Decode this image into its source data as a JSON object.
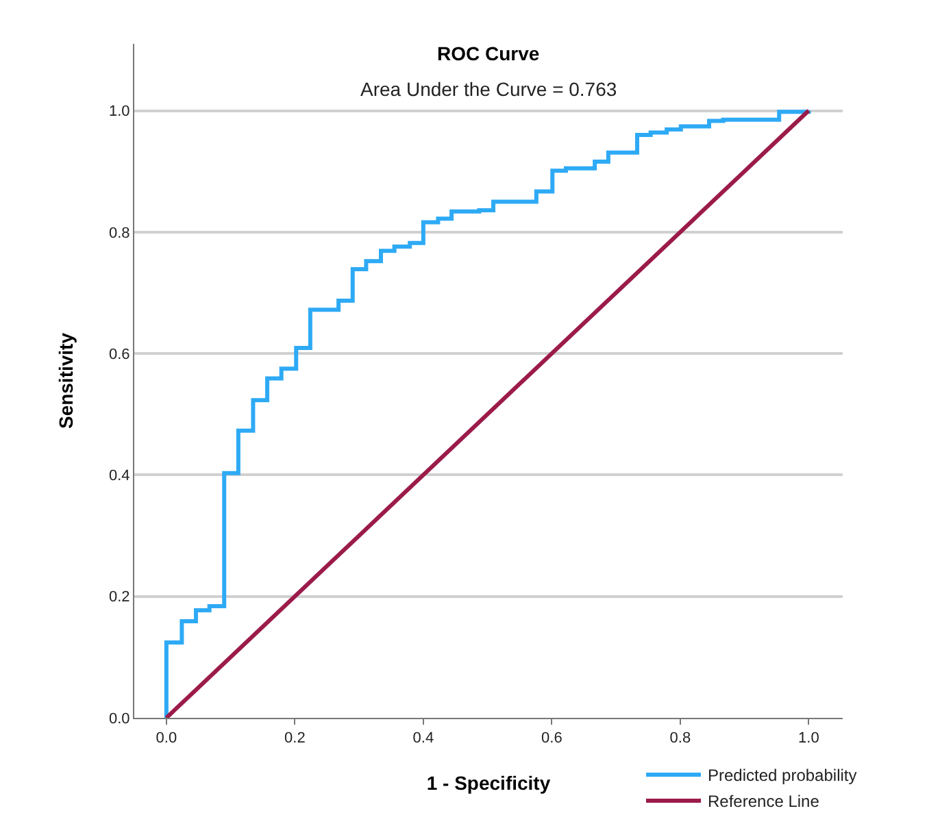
{
  "chart_data": {
    "type": "line",
    "title": "ROC Curve",
    "subtitle": "Area Under the Curve = 0.763",
    "xlabel": "1 - Specificity",
    "ylabel": "Sensitivity",
    "xlim": [
      -0.05,
      1.053
    ],
    "ylim": [
      0,
      1.11
    ],
    "xticks": [
      {
        "value": 0,
        "label": "0.0"
      },
      {
        "value": 0.2,
        "label": "0.2"
      },
      {
        "value": 0.4,
        "label": "0.4"
      },
      {
        "value": 0.6,
        "label": "0.6"
      },
      {
        "value": 0.8,
        "label": "0.8"
      },
      {
        "value": 1,
        "label": "1.0"
      }
    ],
    "yticks": [
      {
        "value": 0,
        "label": "0.0"
      },
      {
        "value": 0.2,
        "label": "0.2"
      },
      {
        "value": 0.4,
        "label": "0.4"
      },
      {
        "value": 0.6,
        "label": "0.6"
      },
      {
        "value": 0.8,
        "label": "0.8"
      },
      {
        "value": 1,
        "label": "1.0"
      }
    ],
    "grid": "y",
    "legend": "bottom right",
    "marker": "none",
    "series": [
      {
        "name": "Predicted probability",
        "type": "step",
        "color": "#2eaaf5",
        "x": [
          0,
          0,
          0.024,
          0.046,
          0.067,
          0.09,
          0.112,
          0.135,
          0.157,
          0.179,
          0.202,
          0.224,
          0.268,
          0.29,
          0.311,
          0.334,
          0.355,
          0.379,
          0.4,
          0.423,
          0.444,
          0.487,
          0.509,
          0.576,
          0.601,
          0.622,
          0.667,
          0.688,
          0.733,
          0.754,
          0.779,
          0.801,
          0.845,
          0.867,
          0.954,
          1
        ],
        "values": [
          0,
          0.124,
          0.159,
          0.177,
          0.184,
          0.403,
          0.473,
          0.523,
          0.559,
          0.575,
          0.609,
          0.672,
          0.687,
          0.739,
          0.752,
          0.769,
          0.776,
          0.782,
          0.816,
          0.822,
          0.834,
          0.836,
          0.85,
          0.867,
          0.901,
          0.905,
          0.916,
          0.931,
          0.96,
          0.964,
          0.969,
          0.974,
          0.983,
          0.985,
          0.998,
          1
        ]
      },
      {
        "name": "Reference Line",
        "color": "#9b1b4a",
        "x": [
          0,
          1
        ],
        "values": [
          0,
          1
        ]
      }
    ]
  }
}
